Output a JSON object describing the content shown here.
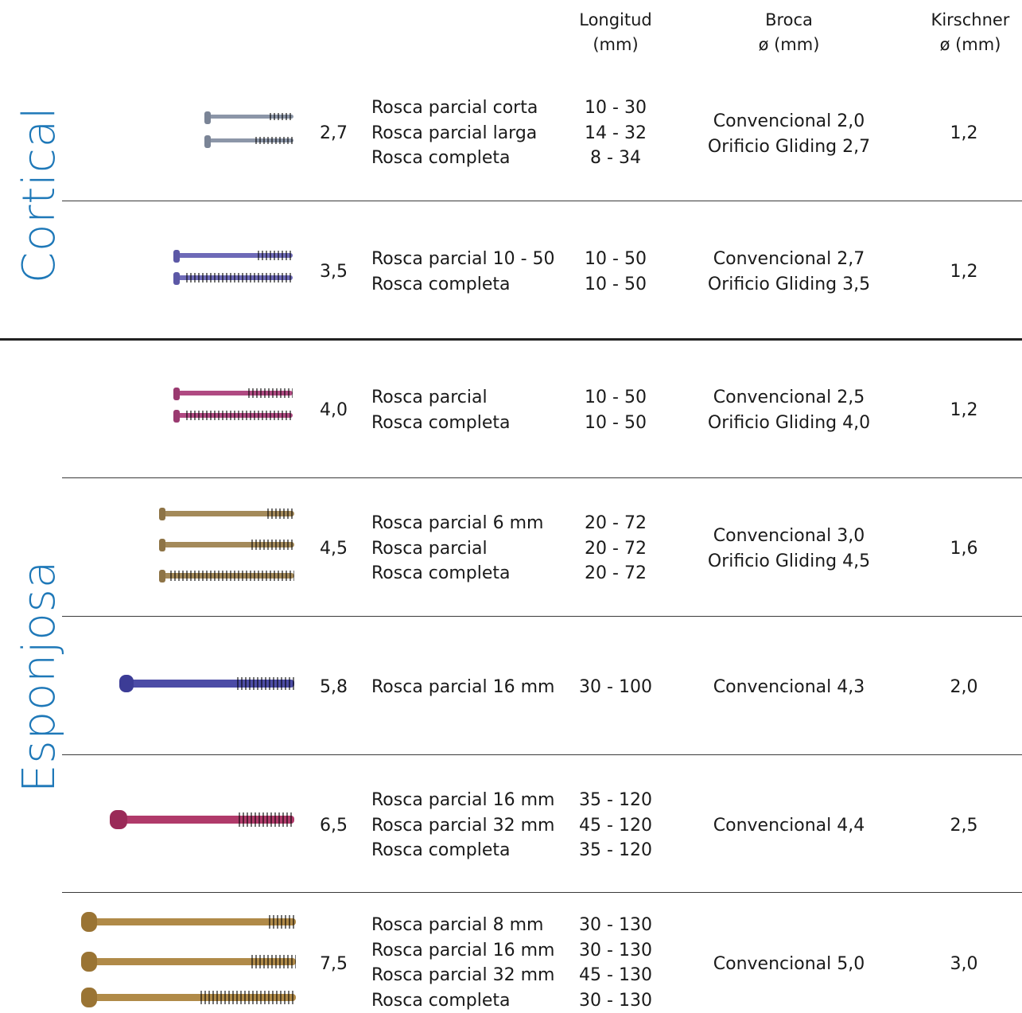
{
  "header": {
    "longitud": [
      "Longitud",
      "(mm)"
    ],
    "broca": [
      "Broca",
      "ø (mm)"
    ],
    "kirschner": [
      "Kirschner",
      "ø (mm)"
    ]
  },
  "sections": {
    "cortical": "Cortical",
    "esponjosa": "Esponjosa"
  },
  "rows": [
    {
      "size": "2,7",
      "types": [
        "Rosca parcial corta",
        "Rosca parcial larga",
        "Rosca completa"
      ],
      "lengths": [
        "10 - 30",
        "14 - 32",
        "8 - 34"
      ],
      "drill": [
        "Convencional 2,0",
        "Orificio Gliding 2,7"
      ],
      "kirschner": "1,2"
    },
    {
      "size": "3,5",
      "types": [
        "Rosca parcial  10 - 50",
        "Rosca completa"
      ],
      "lengths": [
        "10 - 50",
        "10 - 50"
      ],
      "drill": [
        "Convencional 2,7",
        "Orificio Gliding 3,5"
      ],
      "kirschner": "1,2"
    },
    {
      "size": "4,0",
      "types": [
        "Rosca parcial",
        "Rosca completa"
      ],
      "lengths": [
        "10 - 50",
        "10 - 50"
      ],
      "drill": [
        "Convencional 2,5",
        "Orificio Gliding 4,0"
      ],
      "kirschner": "1,2"
    },
    {
      "size": "4,5",
      "types": [
        "Rosca parcial 6 mm",
        "Rosca parcial",
        "Rosca completa"
      ],
      "lengths": [
        "20 - 72",
        "20 - 72",
        "20 - 72"
      ],
      "drill": [
        "Convencional 3,0",
        "Orificio Gliding 4,5"
      ],
      "kirschner": "1,6"
    },
    {
      "size": "5,8",
      "types": [
        "Rosca parcial 16 mm"
      ],
      "lengths": [
        "30 - 100"
      ],
      "drill": [
        "Convencional 4,3"
      ],
      "kirschner": "2,0"
    },
    {
      "size": "6,5",
      "types": [
        "Rosca parcial 16 mm",
        "Rosca parcial 32 mm",
        "Rosca completa"
      ],
      "lengths": [
        "35 - 120",
        "45 - 120",
        "35 - 120"
      ],
      "drill": [
        "Convencional 4,4"
      ],
      "kirschner": "2,5"
    },
    {
      "size": "7,5",
      "types": [
        "Rosca parcial 8 mm",
        "Rosca parcial 16 mm",
        "Rosca parcial 32 mm",
        "Rosca completa"
      ],
      "lengths": [
        "30 - 130",
        "30 - 130",
        "45 - 130",
        "30 - 130"
      ],
      "drill": [
        "Convencional 5,0"
      ],
      "kirschner": "3,0"
    }
  ],
  "colors": {
    "section_label": "#1e78b8",
    "screw_27": "#8c96a8",
    "screw_35": "#6e6ab8",
    "screw_40": "#b04a82",
    "screw_45": "#a48a5a",
    "screw_58": "#4c4ca6",
    "screw_65": "#b03a6a",
    "screw_75": "#b08a48"
  }
}
